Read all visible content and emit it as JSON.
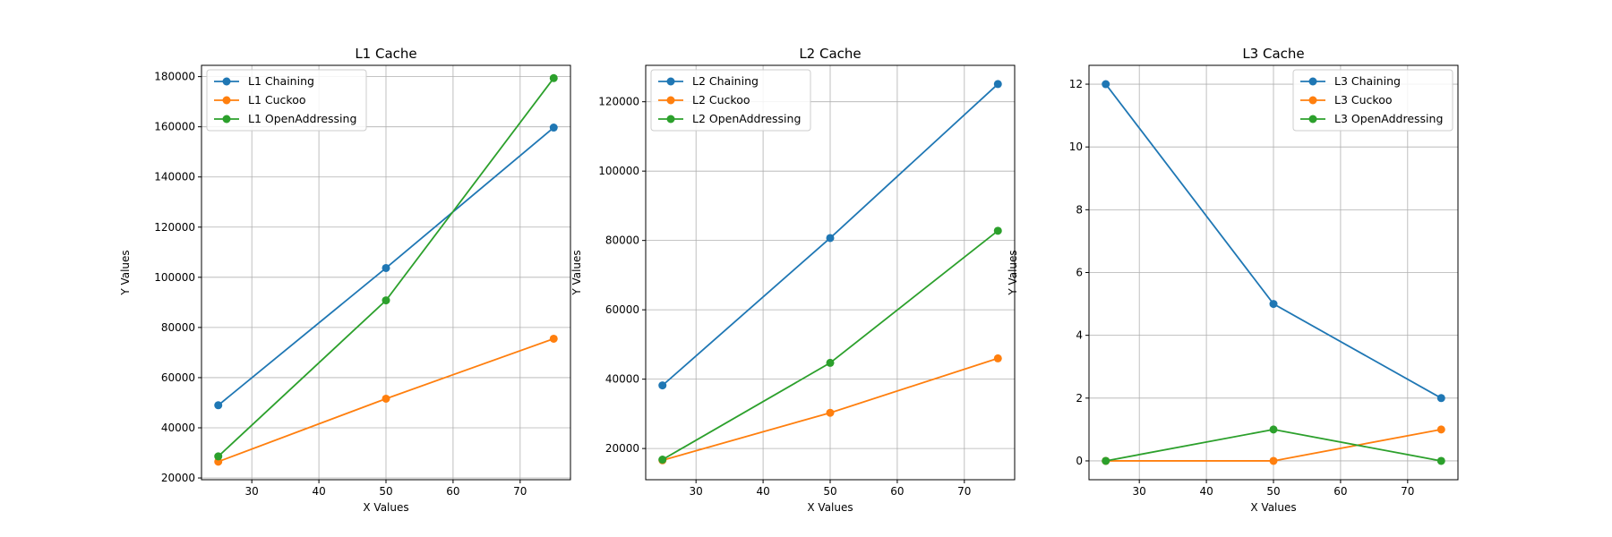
{
  "chart_data": [
    {
      "type": "line",
      "title": "L1 Cache",
      "xlabel": "X Values",
      "ylabel": "Y Values",
      "xlim": [
        22.5,
        77.5
      ],
      "ylim": [
        19300,
        184500
      ],
      "xticks": [
        30,
        40,
        50,
        60,
        70
      ],
      "yticks": [
        20000,
        40000,
        60000,
        80000,
        100000,
        120000,
        140000,
        160000,
        180000
      ],
      "grid": true,
      "legend": "top-left",
      "x": [
        25,
        50,
        75
      ],
      "series": [
        {
          "name": "L1 Chaining",
          "color": "#1f77b4",
          "values": [
            49000,
            103700,
            159700
          ]
        },
        {
          "name": "L1 Cuckoo",
          "color": "#ff7f0e",
          "values": [
            26500,
            51600,
            75500
          ]
        },
        {
          "name": "L1 OpenAddressing",
          "color": "#2ca02c",
          "values": [
            28600,
            90800,
            179400
          ]
        }
      ]
    },
    {
      "type": "line",
      "title": "L2 Cache",
      "xlabel": "X Values",
      "ylabel": "Y Values",
      "xlim": [
        22.5,
        77.5
      ],
      "ylim": [
        11000,
        130500
      ],
      "xticks": [
        30,
        40,
        50,
        60,
        70
      ],
      "yticks": [
        20000,
        40000,
        60000,
        80000,
        100000,
        120000
      ],
      "grid": true,
      "legend": "top-left",
      "x": [
        25,
        50,
        75
      ],
      "series": [
        {
          "name": "L2 Chaining",
          "color": "#1f77b4",
          "values": [
            38200,
            80700,
            125100
          ]
        },
        {
          "name": "L2 Cuckoo",
          "color": "#ff7f0e",
          "values": [
            16600,
            30300,
            46000
          ]
        },
        {
          "name": "L2 OpenAddressing",
          "color": "#2ca02c",
          "values": [
            16800,
            44700,
            82800
          ]
        }
      ]
    },
    {
      "type": "line",
      "title": "L3 Cache",
      "xlabel": "X Values",
      "ylabel": "Y Values",
      "xlim": [
        22.5,
        77.5
      ],
      "ylim": [
        -0.6,
        12.6
      ],
      "xticks": [
        30,
        40,
        50,
        60,
        70
      ],
      "yticks": [
        0,
        2,
        4,
        6,
        8,
        10,
        12
      ],
      "grid": true,
      "legend": "top-right",
      "x": [
        25,
        50,
        75
      ],
      "series": [
        {
          "name": "L3 Chaining",
          "color": "#1f77b4",
          "values": [
            12,
            5,
            2
          ]
        },
        {
          "name": "L3 Cuckoo",
          "color": "#ff7f0e",
          "values": [
            0,
            0,
            1
          ]
        },
        {
          "name": "L3 OpenAddressing",
          "color": "#2ca02c",
          "values": [
            0,
            1,
            0
          ]
        }
      ]
    }
  ]
}
